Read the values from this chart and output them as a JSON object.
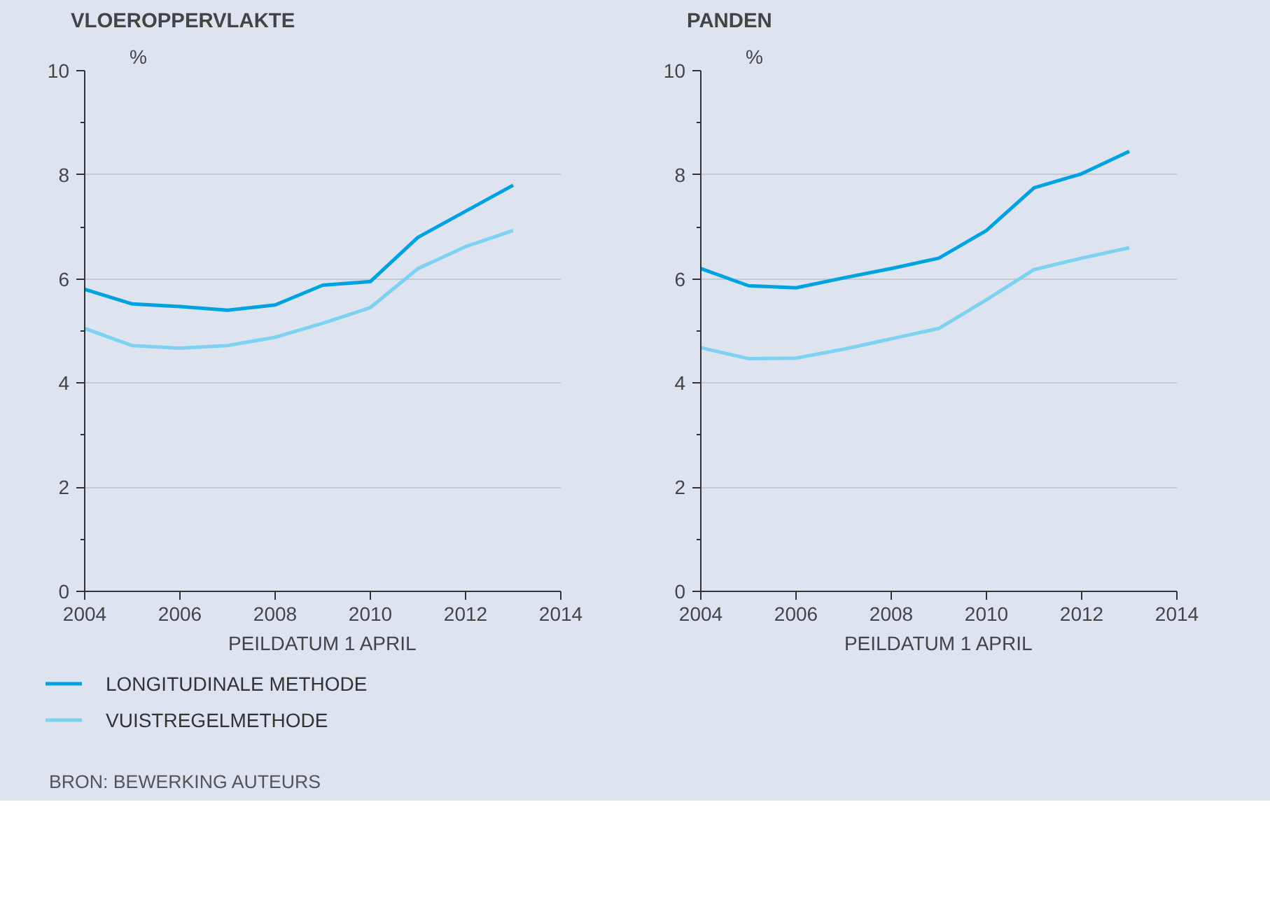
{
  "chart_data": [
    {
      "type": "line",
      "title": "VLOEROPPERVLAKTE",
      "ylabel": "%",
      "xlabel": "PEILDATUM 1 APRIL",
      "x": [
        2004,
        2005,
        2006,
        2007,
        2008,
        2009,
        2010,
        2011,
        2012,
        2013
      ],
      "xlim": [
        2004,
        2014
      ],
      "xticks": [
        2004,
        2006,
        2008,
        2010,
        2012,
        2014
      ],
      "ylim": [
        0,
        10
      ],
      "yticks": [
        0,
        2,
        4,
        6,
        8,
        10
      ],
      "grid": "y",
      "legend": "bottom",
      "marker": "none",
      "line_style": "solid",
      "series": [
        {
          "name": "LONGITUDINALE METHODE",
          "color": "#00a3e0",
          "values": [
            5.8,
            5.52,
            5.47,
            5.4,
            5.5,
            5.88,
            5.95,
            6.8,
            7.3,
            7.8
          ]
        },
        {
          "name": "VUISTREGELMETHODE",
          "color": "#7fd1f2",
          "values": [
            5.05,
            4.72,
            4.67,
            4.72,
            4.88,
            5.15,
            5.45,
            6.2,
            6.62,
            6.93
          ]
        }
      ],
      "annotations": [
        "BRON: BEWERKING AUTEURS"
      ]
    },
    {
      "type": "line",
      "title": "PANDEN",
      "ylabel": "%",
      "xlabel": "PEILDATUM 1 APRIL",
      "x": [
        2004,
        2005,
        2006,
        2007,
        2008,
        2009,
        2010,
        2011,
        2012,
        2013
      ],
      "xlim": [
        2004,
        2014
      ],
      "xticks": [
        2004,
        2006,
        2008,
        2010,
        2012,
        2014
      ],
      "ylim": [
        0,
        10
      ],
      "yticks": [
        0,
        2,
        4,
        6,
        8,
        10
      ],
      "grid": "y",
      "marker": "none",
      "line_style": "solid",
      "series": [
        {
          "color": "#00a3e0",
          "values": [
            6.2,
            5.87,
            5.83,
            6.02,
            6.2,
            6.4,
            6.93,
            7.75,
            8.02,
            8.45
          ]
        },
        {
          "color": "#7fd1f2",
          "values": [
            4.68,
            4.47,
            4.48,
            4.65,
            4.85,
            5.05,
            5.6,
            6.18,
            6.4,
            6.6
          ]
        }
      ]
    }
  ]
}
